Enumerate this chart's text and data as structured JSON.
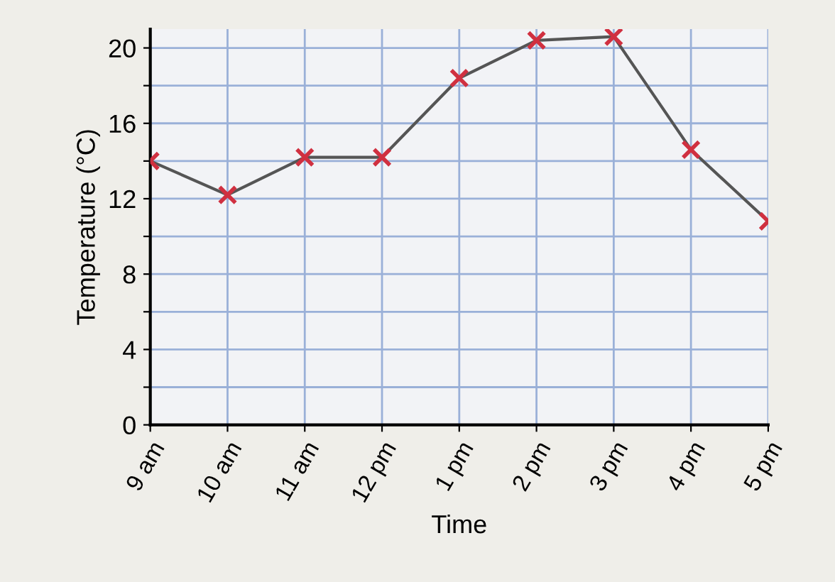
{
  "chart_data": {
    "type": "line",
    "xlabel": "Time",
    "ylabel": "Temperature (°C)",
    "categories": [
      "9 am",
      "10 am",
      "11 am",
      "12 pm",
      "1 pm",
      "2 pm",
      "3 pm",
      "4 pm",
      "5 pm"
    ],
    "series": [
      {
        "color": "#555555",
        "values": [
          14,
          12.2,
          14.2,
          14.2,
          18.4,
          20.4,
          20.6,
          14.6,
          10.8
        ]
      }
    ],
    "ylim": [
      0,
      21
    ],
    "yticks": [
      0,
      {
        "value": 2,
        "label": null
      },
      4,
      {
        "value": 6,
        "label": null
      },
      8,
      {
        "value": 10,
        "label": null
      },
      12,
      {
        "value": 14,
        "label": null
      },
      16,
      {
        "value": 18,
        "label": null
      },
      20
    ],
    "grid": true,
    "marker": "cross",
    "line_style": "solid"
  }
}
